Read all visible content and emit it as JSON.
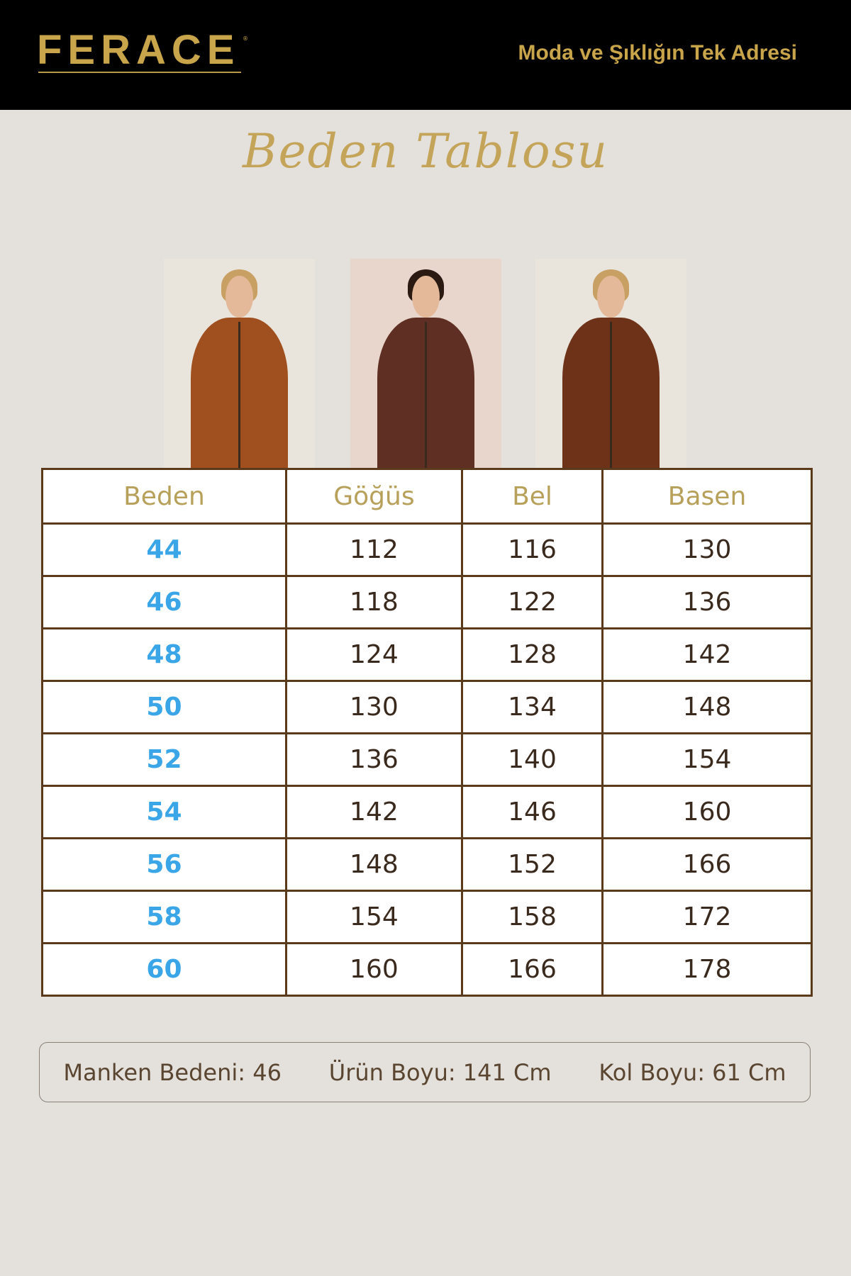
{
  "header": {
    "brand": "FERACE",
    "tagline": "Moda ve Şıklığın Tek Adresi"
  },
  "title": "Beden Tablosu",
  "photos": [
    {
      "coat_color": "#a0501e",
      "bg": "#e9e4dc"
    },
    {
      "coat_color": "#5e2f22",
      "bg": "#e8d6cc"
    },
    {
      "coat_color": "#6e3219",
      "bg": "#e9e4dc"
    }
  ],
  "table": {
    "headers": [
      "Beden",
      "Göğüs",
      "Bel",
      "Basen"
    ],
    "rows": [
      [
        "44",
        "112",
        "116",
        "130"
      ],
      [
        "46",
        "118",
        "122",
        "136"
      ],
      [
        "48",
        "124",
        "128",
        "142"
      ],
      [
        "50",
        "130",
        "134",
        "148"
      ],
      [
        "52",
        "136",
        "140",
        "154"
      ],
      [
        "54",
        "142",
        "146",
        "160"
      ],
      [
        "56",
        "148",
        "152",
        "166"
      ],
      [
        "58",
        "154",
        "158",
        "172"
      ],
      [
        "60",
        "160",
        "166",
        "178"
      ]
    ]
  },
  "info": {
    "model_size": "Manken Bedeni: 46",
    "product_length": "Ürün Boyu: 141 Cm",
    "sleeve_length": "Kol Boyu: 61 Cm"
  },
  "colors": {
    "gold": "#c8a44a",
    "border": "#5b3a1c",
    "size_blue": "#3aa6e8"
  }
}
